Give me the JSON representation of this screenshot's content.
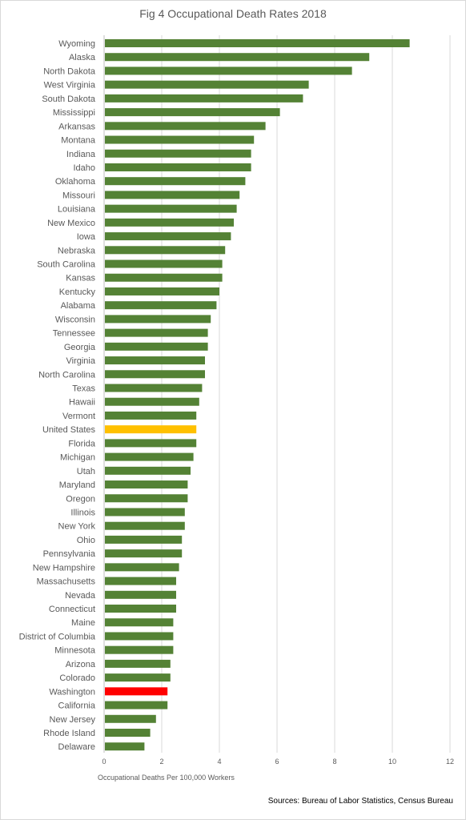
{
  "chart_data": {
    "type": "bar",
    "orientation": "horizontal",
    "title": "Fig 4 Occupational Death Rates 2018",
    "xlabel": "Occupational Deaths Per 100,000 Workers",
    "ylabel": "",
    "xlim": [
      0,
      12
    ],
    "xticks": [
      "0",
      "2",
      "4",
      "6",
      "8",
      "10",
      "12"
    ],
    "grid": true,
    "categories": [
      "Wyoming",
      "Alaska",
      "North Dakota",
      "West Virginia",
      "South Dakota",
      "Mississippi",
      "Arkansas",
      "Montana",
      "Indiana",
      "Idaho",
      "Oklahoma",
      "Missouri",
      "Louisiana",
      "New Mexico",
      "Iowa",
      "Nebraska",
      "South Carolina",
      "Kansas",
      "Kentucky",
      "Alabama",
      "Wisconsin",
      "Tennessee",
      "Georgia",
      "Virginia",
      "North Carolina",
      "Texas",
      "Hawaii",
      "Vermont",
      "United States",
      "Florida",
      "Michigan",
      "Utah",
      "Maryland",
      "Oregon",
      "Illinois",
      "New York",
      "Ohio",
      "Pennsylvania",
      "New Hampshire",
      "Massachusetts",
      "Nevada",
      "Connecticut",
      "Maine",
      "District of Columbia",
      "Minnesota",
      "Arizona",
      "Colorado",
      "Washington",
      "California",
      "New Jersey",
      "Rhode Island",
      "Delaware"
    ],
    "values": [
      10.6,
      9.2,
      8.6,
      7.1,
      6.9,
      6.1,
      5.6,
      5.2,
      5.1,
      5.1,
      4.9,
      4.7,
      4.6,
      4.5,
      4.4,
      4.2,
      4.1,
      4.1,
      4.0,
      3.9,
      3.7,
      3.6,
      3.6,
      3.5,
      3.5,
      3.4,
      3.3,
      3.2,
      3.2,
      3.2,
      3.1,
      3.0,
      2.9,
      2.9,
      2.8,
      2.8,
      2.7,
      2.7,
      2.6,
      2.5,
      2.5,
      2.5,
      2.4,
      2.4,
      2.4,
      2.3,
      2.3,
      2.2,
      2.2,
      1.8,
      1.6,
      1.4
    ],
    "colors": {
      "default": "#548235",
      "United States": "#ffc000",
      "Washington": "#ff0000"
    },
    "source": "Sources: Bureau of Labor Statistics, Census Bureau"
  }
}
